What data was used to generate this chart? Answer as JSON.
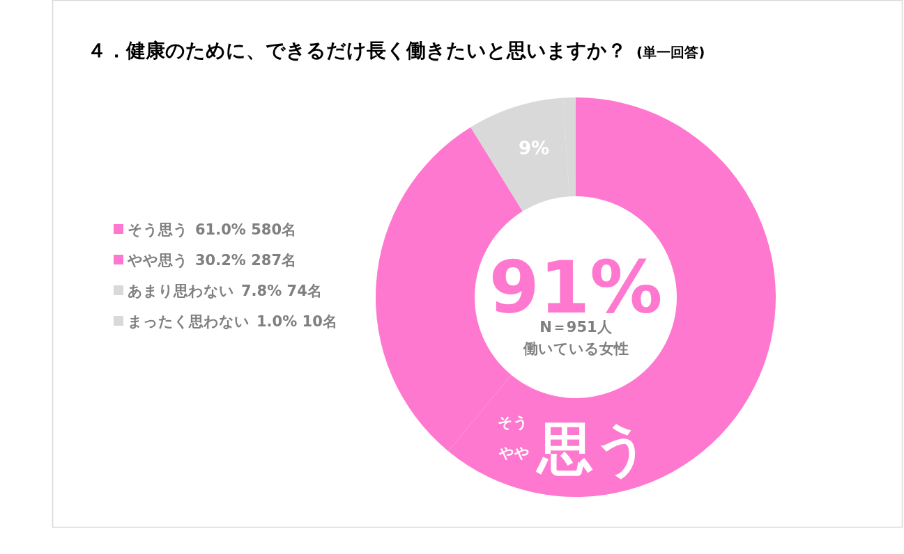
{
  "chart_data": {
    "type": "donut",
    "title": "４．健康のために、できるだけ長く働きたいと思いますか？",
    "subtitle": "(単一回答)",
    "categories": [
      "そう思う",
      "やや思う",
      "あまり思わない",
      "まったく思わない"
    ],
    "values": [
      61.0,
      30.2,
      7.8,
      1.0
    ],
    "colors": [
      "#ff78cf",
      "#ff78cf",
      "#d9d9d9",
      "#d9d9d9"
    ],
    "value_labels": [
      "61.0% 580名",
      "30.2% 287名",
      "7.8% 74名",
      "1.0% 10名"
    ],
    "legend": "left",
    "annotations": [
      "91%",
      "N＝951人",
      "働いている女性",
      "9%",
      "そう",
      "やや",
      "思う"
    ]
  }
}
